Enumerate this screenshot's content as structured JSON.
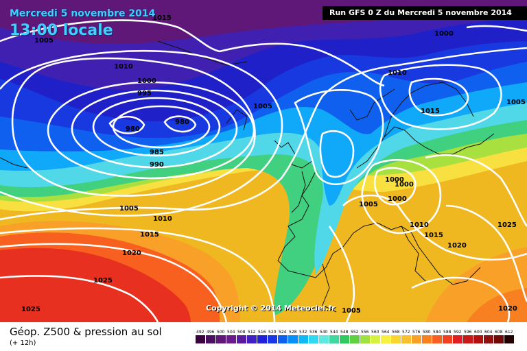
{
  "header": {
    "date": "Mercredi 5 novembre 2014",
    "time": "13:00 locale",
    "run": "Run GFS 0 Z du Mercredi 5 novembre 2014"
  },
  "copyright": "Copyright © 2014 Meteociel.fr",
  "footer": {
    "product": "Géop. Z500 & pression au sol",
    "step": "(+ 12h)"
  },
  "isobar_labels": [
    "1015",
    "1005",
    "1010",
    "1000",
    "995",
    "980",
    "980",
    "985",
    "990",
    "1005",
    "1000",
    "1010",
    "1015",
    "1005",
    "1005",
    "1010",
    "1015",
    "1020",
    "1025",
    "1025",
    "1000",
    "1000",
    "1005",
    "1000",
    "1010",
    "1015",
    "1020",
    "1025",
    "1020",
    "1005"
  ],
  "scale": {
    "values": [
      "492",
      "496",
      "500",
      "504",
      "508",
      "512",
      "516",
      "520",
      "524",
      "528",
      "532",
      "536",
      "540",
      "544",
      "548",
      "552",
      "556",
      "560",
      "564",
      "568",
      "572",
      "576",
      "580",
      "584",
      "588",
      "592",
      "596",
      "600",
      "604",
      "608",
      "612"
    ],
    "colors": [
      "#3a0040",
      "#4a1060",
      "#601878",
      "#6a1a8a",
      "#5a1aa0",
      "#4020c0",
      "#2020d8",
      "#1838e8",
      "#1060f0",
      "#0890f8",
      "#10b8f8",
      "#30d8f0",
      "#60e8e0",
      "#40d8a0",
      "#30c860",
      "#60d040",
      "#a0e040",
      "#d8f040",
      "#f8f040",
      "#f8d830",
      "#f8c030",
      "#f8a028",
      "#f88020",
      "#f86020",
      "#f04020",
      "#e02020",
      "#c81818",
      "#b01010",
      "#901010",
      "#700808",
      "#200000"
    ]
  }
}
